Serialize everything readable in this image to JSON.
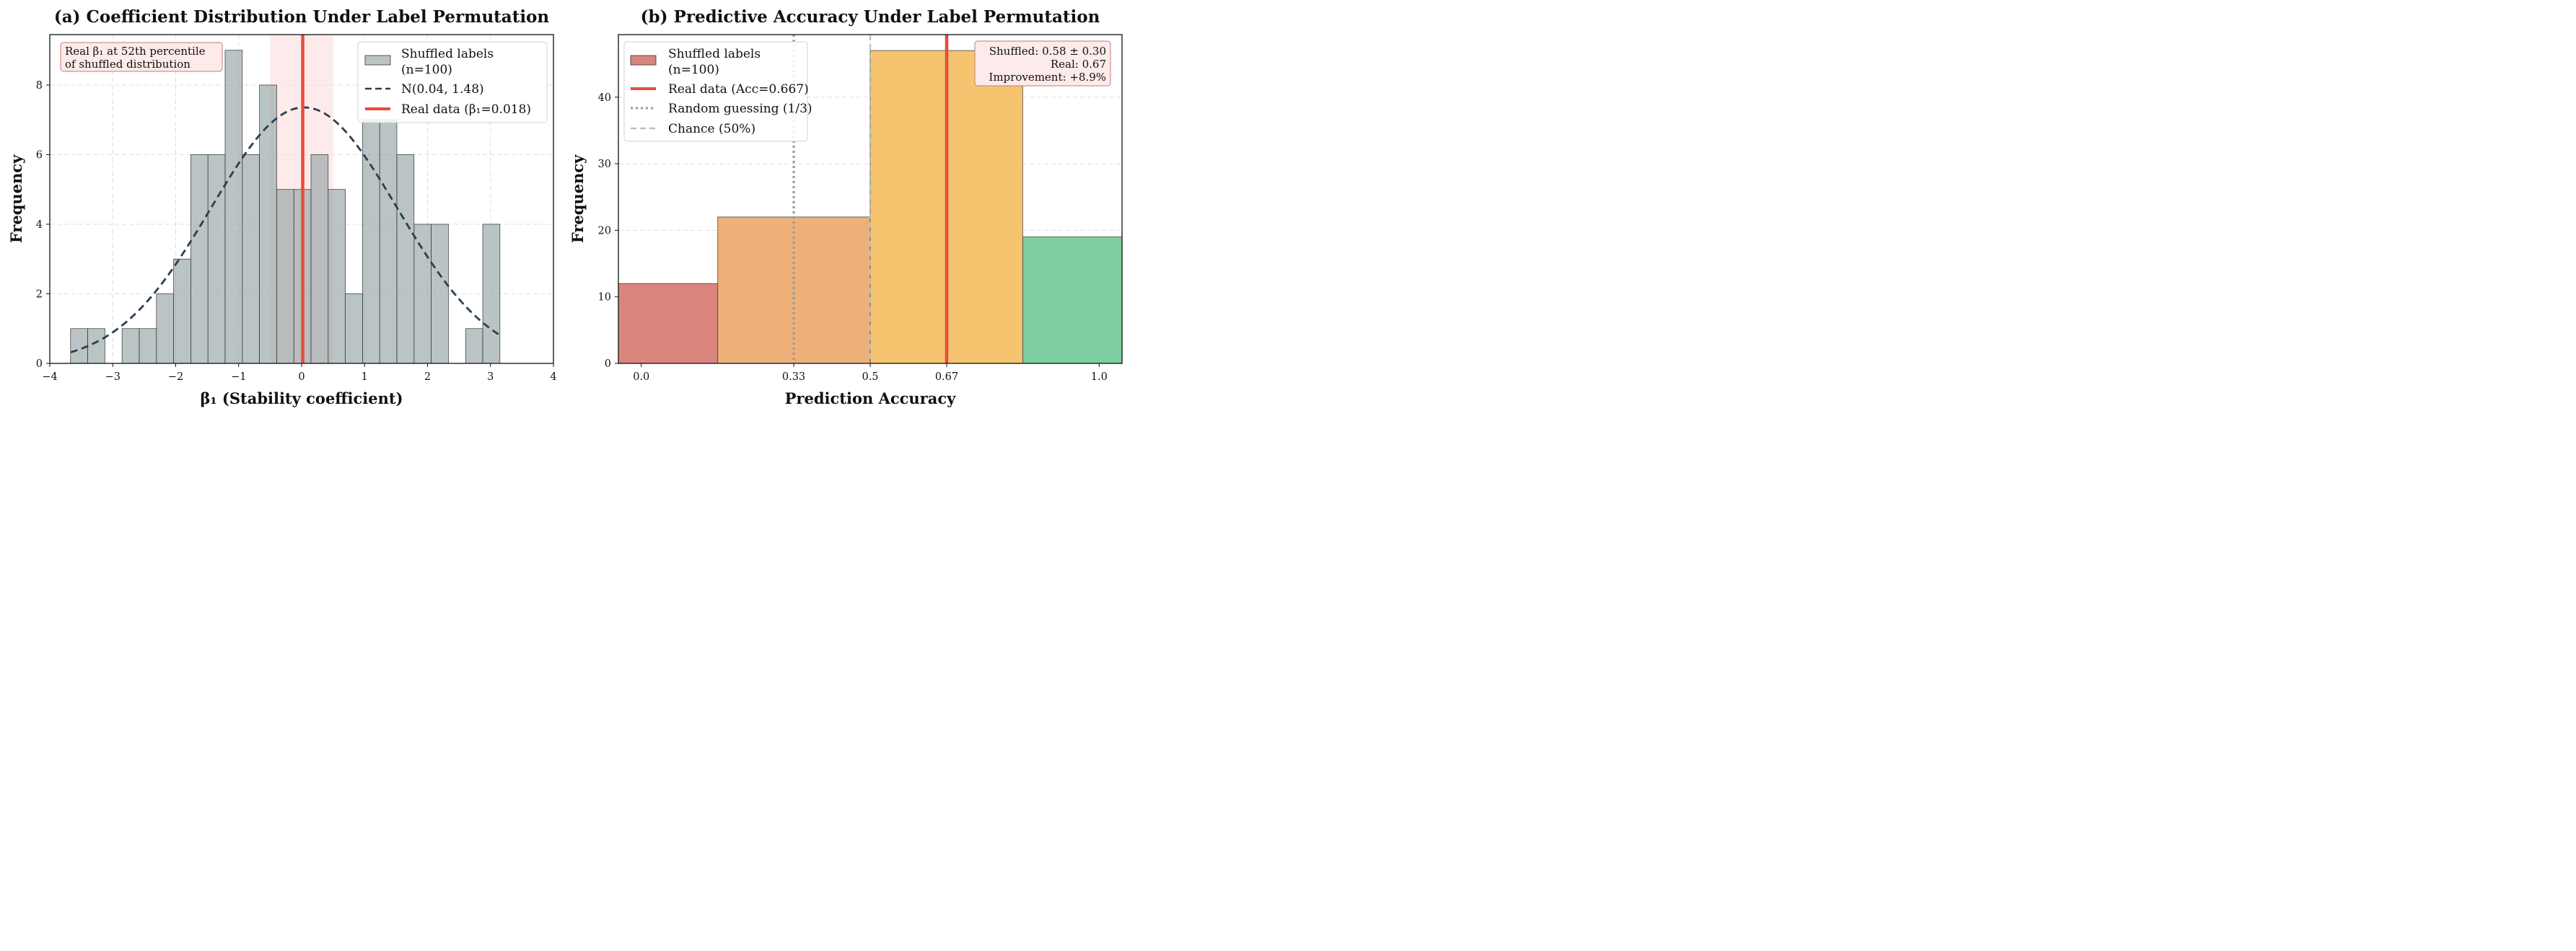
{
  "chart_data": [
    {
      "type": "bar",
      "title": "(a) Coefficient Distribution Under Label Permutation",
      "xlabel": "β₁ (Stability coefficient)",
      "ylabel": "Frequency",
      "xlim": [
        -4,
        4
      ],
      "ylim": [
        0,
        9.45
      ],
      "xticks": [
        -4,
        -3,
        -2,
        -1,
        0,
        1,
        2,
        3,
        4
      ],
      "xtick_labels": [
        "−4",
        "−3",
        "−2",
        "−1",
        "0",
        "1",
        "2",
        "3",
        "4"
      ],
      "yticks": [
        0,
        2,
        4,
        6,
        8
      ],
      "grid": true,
      "bin_width": 0.2728,
      "bins": [
        {
          "x0": -3.67,
          "count": 1
        },
        {
          "x0": -3.397,
          "count": 1
        },
        {
          "x0": -3.124,
          "count": 0
        },
        {
          "x0": -2.852,
          "count": 1
        },
        {
          "x0": -2.579,
          "count": 1
        },
        {
          "x0": -2.306,
          "count": 2
        },
        {
          "x0": -2.033,
          "count": 3
        },
        {
          "x0": -1.76,
          "count": 6
        },
        {
          "x0": -1.488,
          "count": 6
        },
        {
          "x0": -1.215,
          "count": 9
        },
        {
          "x0": -0.942,
          "count": 6
        },
        {
          "x0": -0.669,
          "count": 8
        },
        {
          "x0": -0.396,
          "count": 5
        },
        {
          "x0": -0.124,
          "count": 5
        },
        {
          "x0": 0.149,
          "count": 6
        },
        {
          "x0": 0.422,
          "count": 5
        },
        {
          "x0": 0.695,
          "count": 2
        },
        {
          "x0": 0.968,
          "count": 7
        },
        {
          "x0": 1.24,
          "count": 7
        },
        {
          "x0": 1.513,
          "count": 6
        },
        {
          "x0": 1.786,
          "count": 4
        },
        {
          "x0": 2.059,
          "count": 4
        },
        {
          "x0": 2.332,
          "count": 0
        },
        {
          "x0": 2.604,
          "count": 1
        },
        {
          "x0": 2.877,
          "count": 4
        }
      ],
      "bar_color": "#95a5a6",
      "normal_fit": {
        "mu": 0.04,
        "sigma": 1.48,
        "x_range": [
          -3.67,
          3.15
        ],
        "scale": 27.3,
        "color": "#2c3e50"
      },
      "real_value": 0.018,
      "real_color": "#e74c3c",
      "band": [
        -0.5,
        0.5
      ],
      "band_color": "#fbdcdc",
      "legend": {
        "position": "top-right",
        "entries": [
          {
            "line1": "Shuffled labels",
            "line2": "(n=100)",
            "marker": "box"
          },
          {
            "line1": "N(0.04, 1.48)",
            "marker": "dashed-line"
          },
          {
            "line1": "Real data (β₁=0.018)",
            "marker": "solid-line"
          }
        ]
      },
      "annotation": {
        "position": "top-left",
        "lines": [
          "Real β₁ at 52th percentile",
          "of shuffled distribution"
        ]
      }
    },
    {
      "type": "bar",
      "title": "(b) Predictive Accuracy Under Label Permutation",
      "xlabel": "Prediction Accuracy",
      "ylabel": "Frequency",
      "xlim": [
        -0.05,
        1.05
      ],
      "ylim": [
        0,
        49.4
      ],
      "xticks": [
        0.0,
        0.333,
        0.5,
        0.667,
        1.0
      ],
      "xtick_labels": [
        "0.0",
        "0.33",
        "0.5",
        "0.67",
        "1.0"
      ],
      "yticks": [
        0,
        10,
        20,
        30,
        40
      ],
      "grid": true,
      "bins": [
        {
          "x0": -0.05,
          "x1": 0.167,
          "count": 12,
          "color": "#d9857e"
        },
        {
          "x0": 0.167,
          "x1": 0.5,
          "count": 22,
          "color": "#eeb079"
        },
        {
          "x0": 0.5,
          "x1": 0.833,
          "count": 47,
          "color": "#f6c36f"
        },
        {
          "x0": 0.833,
          "x1": 1.05,
          "count": 19,
          "color": "#7dcd9e"
        }
      ],
      "real_value": 0.667,
      "real_color": "#e74c3c",
      "random_guess": 0.333,
      "chance": 0.5,
      "legend": {
        "position": "top-left",
        "entries": [
          {
            "line1": "Shuffled labels",
            "line2": "(n=100)",
            "marker": "box"
          },
          {
            "line1": "Real data (Acc=0.667)",
            "marker": "solid-line"
          },
          {
            "line1": "Random guessing (1/3)",
            "marker": "dotted-line"
          },
          {
            "line1": "Chance (50%)",
            "marker": "dashed-line"
          }
        ]
      },
      "annotation": {
        "position": "top-right",
        "lines": [
          "Shuffled: 0.58 ± 0.30",
          "Real: 0.67",
          "Improvement: +8.9%"
        ]
      }
    }
  ]
}
